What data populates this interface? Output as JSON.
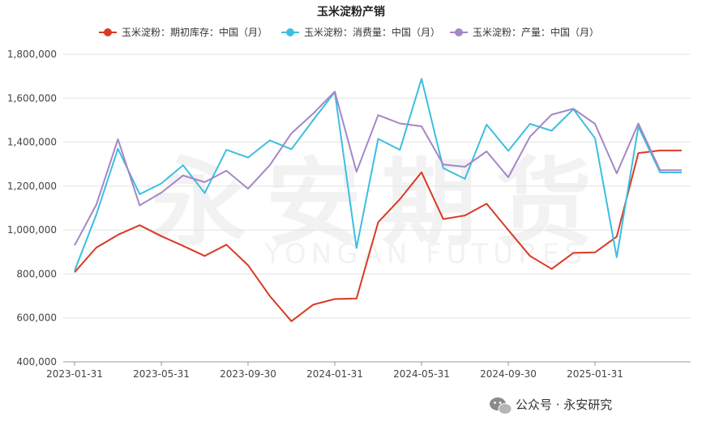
{
  "chart_data": {
    "type": "line",
    "title": "玉米淀粉产销",
    "xlabel": "",
    "ylabel": "",
    "ylim": [
      400000,
      1800000
    ],
    "yticks": [
      "400,000",
      "600,000",
      "800,000",
      "1,000,000",
      "1,200,000",
      "1,400,000",
      "1,600,000",
      "1,800,000"
    ],
    "xticks": [
      "2023-01-31",
      "2023-05-31",
      "2023-09-30",
      "2024-01-31",
      "2024-05-31",
      "2024-09-30",
      "2025-01-31"
    ],
    "x": [
      "2023-01",
      "2023-02",
      "2023-03",
      "2023-04",
      "2023-05",
      "2023-06",
      "2023-07",
      "2023-08",
      "2023-09",
      "2023-10",
      "2023-11",
      "2023-12",
      "2024-01",
      "2024-02",
      "2024-03",
      "2024-04",
      "2024-05",
      "2024-06",
      "2024-07",
      "2024-08",
      "2024-09",
      "2024-10",
      "2024-11",
      "2024-12",
      "2025-01",
      "2025-02",
      "2025-03",
      "2025-04",
      "2025-05"
    ],
    "grid": true,
    "legend_position": "top",
    "series": [
      {
        "name": "玉米淀粉：期初库存：中国（月）",
        "color": "#d93a26",
        "values": [
          808000,
          920000,
          978000,
          1022000,
          972000,
          928000,
          882000,
          933000,
          840000,
          700000,
          585000,
          660000,
          686000,
          688000,
          1035000,
          1140000,
          1263000,
          1050000,
          1066000,
          1120000,
          1000000,
          882000,
          823000,
          896000,
          898000,
          970000,
          1350000,
          1362000,
          1362000
        ]
      },
      {
        "name": "玉米淀粉：消费量：中国（月）",
        "color": "#3bbfe0",
        "values": [
          815000,
          1070000,
          1370000,
          1163000,
          1212000,
          1295000,
          1168000,
          1365000,
          1330000,
          1408000,
          1368000,
          1500000,
          1628000,
          918000,
          1415000,
          1365000,
          1688000,
          1282000,
          1233000,
          1480000,
          1360000,
          1483000,
          1452000,
          1550000,
          1418000,
          876000,
          1470000,
          1262000,
          1262000
        ]
      },
      {
        "name": "玉米淀粉：产量：中国（月）",
        "color": "#a586c6",
        "values": [
          930000,
          1115000,
          1413000,
          1112000,
          1170000,
          1248000,
          1218000,
          1270000,
          1188000,
          1295000,
          1440000,
          1530000,
          1630000,
          1265000,
          1523000,
          1485000,
          1472000,
          1298000,
          1288000,
          1358000,
          1240000,
          1425000,
          1525000,
          1552000,
          1483000,
          1258000,
          1485000,
          1272000,
          1272000
        ]
      }
    ]
  },
  "watermark": {
    "main": "永安期货",
    "sub": "YONGAN FUTURES"
  },
  "footer": {
    "wechat_icon": "wechat-icon",
    "text": "公众号 · 永安研究"
  }
}
